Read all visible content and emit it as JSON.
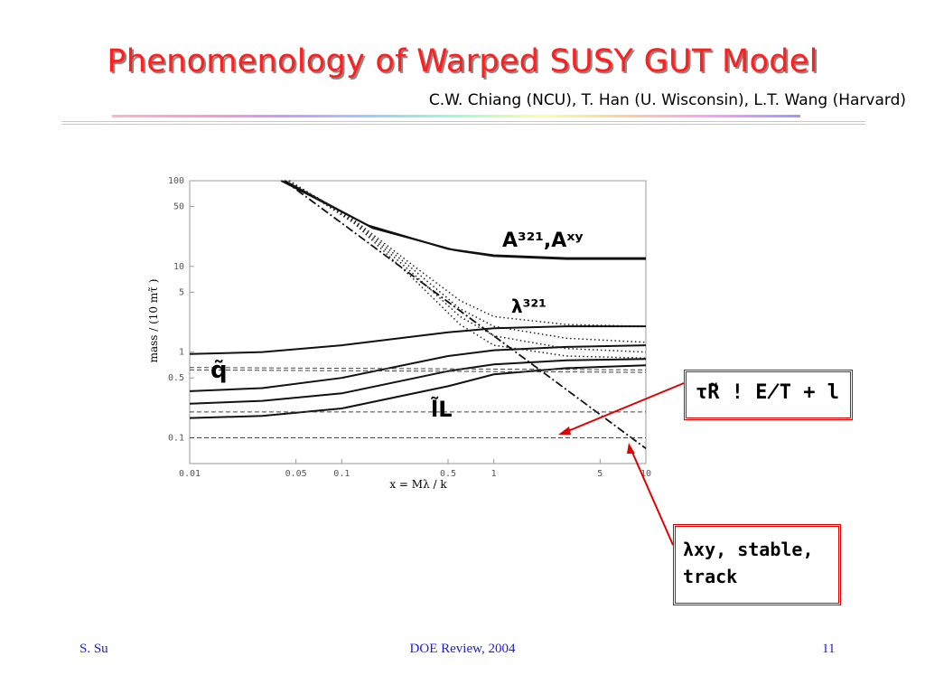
{
  "slide": {
    "title": "Phenomenology of Warped SUSY GUT Model",
    "authors": "C.W. Chiang (NCU), T. Han (U. Wisconsin),  L.T. Wang (Harvard)",
    "footer_left": "S. Su",
    "footer_center": "DOE Review, 2004",
    "footer_right": "11"
  },
  "callouts": {
    "tau": "τ̃R ! E̸T + l",
    "lambda_line1": "λxy, stable,",
    "lambda_line2": "track"
  },
  "colors": {
    "title": "#ff1f1f",
    "footer": "#1c1ce0",
    "arrow": "#e00000"
  },
  "chart_data": {
    "type": "line",
    "xscale": "log",
    "yscale": "log",
    "xlim": [
      0.01,
      10
    ],
    "ylim": [
      0.05,
      100
    ],
    "xlabel": "x = Mλ / k",
    "ylabel": "mass / (10 mτ̃ )",
    "xticks": [
      "0.01",
      "0.05",
      "0.1",
      "0.5",
      "1",
      "5",
      "10"
    ],
    "yticks": [
      "0.1",
      "0.5",
      "1",
      "5",
      "10",
      "50",
      "100"
    ],
    "grid": false,
    "series": [
      {
        "id": "A1",
        "style": "solid",
        "x": [
          0.04,
          0.15,
          0.5,
          1,
          3,
          10
        ],
        "y": [
          100,
          30,
          16,
          13.5,
          12.5,
          12.5
        ]
      },
      {
        "id": "A2",
        "style": "solid",
        "x": [
          0.042,
          0.16,
          0.55,
          1,
          3,
          10
        ],
        "y": [
          100,
          28,
          15.5,
          13.2,
          12.2,
          12.2
        ]
      },
      {
        "id": "lam1",
        "style": "dotted",
        "x": [
          0.045,
          0.12,
          0.3,
          0.6,
          1,
          3,
          10
        ],
        "y": [
          100,
          35,
          10,
          4,
          2.6,
          2.1,
          2.0
        ]
      },
      {
        "id": "lam2",
        "style": "dotted",
        "x": [
          0.045,
          0.12,
          0.3,
          0.6,
          1,
          3,
          10
        ],
        "y": [
          100,
          34,
          9,
          3.2,
          2.0,
          1.45,
          1.3
        ]
      },
      {
        "id": "lam3",
        "style": "dotted",
        "x": [
          0.045,
          0.12,
          0.3,
          0.6,
          1,
          3,
          10
        ],
        "y": [
          100,
          33,
          8,
          2.6,
          1.55,
          1.1,
          1.0
        ]
      },
      {
        "id": "lam4",
        "style": "dotted",
        "x": [
          0.045,
          0.12,
          0.3,
          0.6,
          1,
          3,
          10
        ],
        "y": [
          100,
          32,
          7,
          2.1,
          1.2,
          0.9,
          0.85
        ]
      },
      {
        "id": "lamxy",
        "style": "dashdot",
        "x": [
          0.042,
          10
        ],
        "y": [
          100,
          0.075
        ]
      },
      {
        "id": "s1",
        "style": "solid",
        "x": [
          0.01,
          0.03,
          0.1,
          0.5,
          1,
          3,
          10
        ],
        "y": [
          0.95,
          1.0,
          1.2,
          1.7,
          1.9,
          2.0,
          2.0
        ]
      },
      {
        "id": "s2",
        "style": "solid",
        "x": [
          0.01,
          0.03,
          0.1,
          0.5,
          1,
          3,
          10
        ],
        "y": [
          0.35,
          0.38,
          0.5,
          0.9,
          1.05,
          1.15,
          1.2
        ]
      },
      {
        "id": "s3",
        "style": "solid",
        "x": [
          0.01,
          0.03,
          0.1,
          0.5,
          1,
          3,
          10
        ],
        "y": [
          0.25,
          0.27,
          0.33,
          0.6,
          0.72,
          0.8,
          0.83
        ]
      },
      {
        "id": "s4",
        "style": "solid",
        "x": [
          0.01,
          0.03,
          0.1,
          0.5,
          1,
          3,
          10
        ],
        "y": [
          0.17,
          0.18,
          0.22,
          0.4,
          0.55,
          0.65,
          0.7
        ]
      },
      {
        "id": "h1",
        "style": "dashed",
        "x": [
          0.01,
          10
        ],
        "y": [
          0.66,
          0.62
        ]
      },
      {
        "id": "h2",
        "style": "dashed",
        "x": [
          0.01,
          10
        ],
        "y": [
          0.62,
          0.58
        ]
      },
      {
        "id": "h3",
        "style": "dashed",
        "x": [
          0.01,
          10
        ],
        "y": [
          0.2,
          0.2
        ]
      },
      {
        "id": "h4",
        "style": "dashed",
        "x": [
          0.01,
          10
        ],
        "y": [
          0.1,
          0.1
        ]
      }
    ],
    "labels": {
      "A": "A³²¹,Aˣʸ",
      "lambda321": "λ³²¹",
      "squark": "q̃",
      "slepton": "l̃L"
    }
  }
}
